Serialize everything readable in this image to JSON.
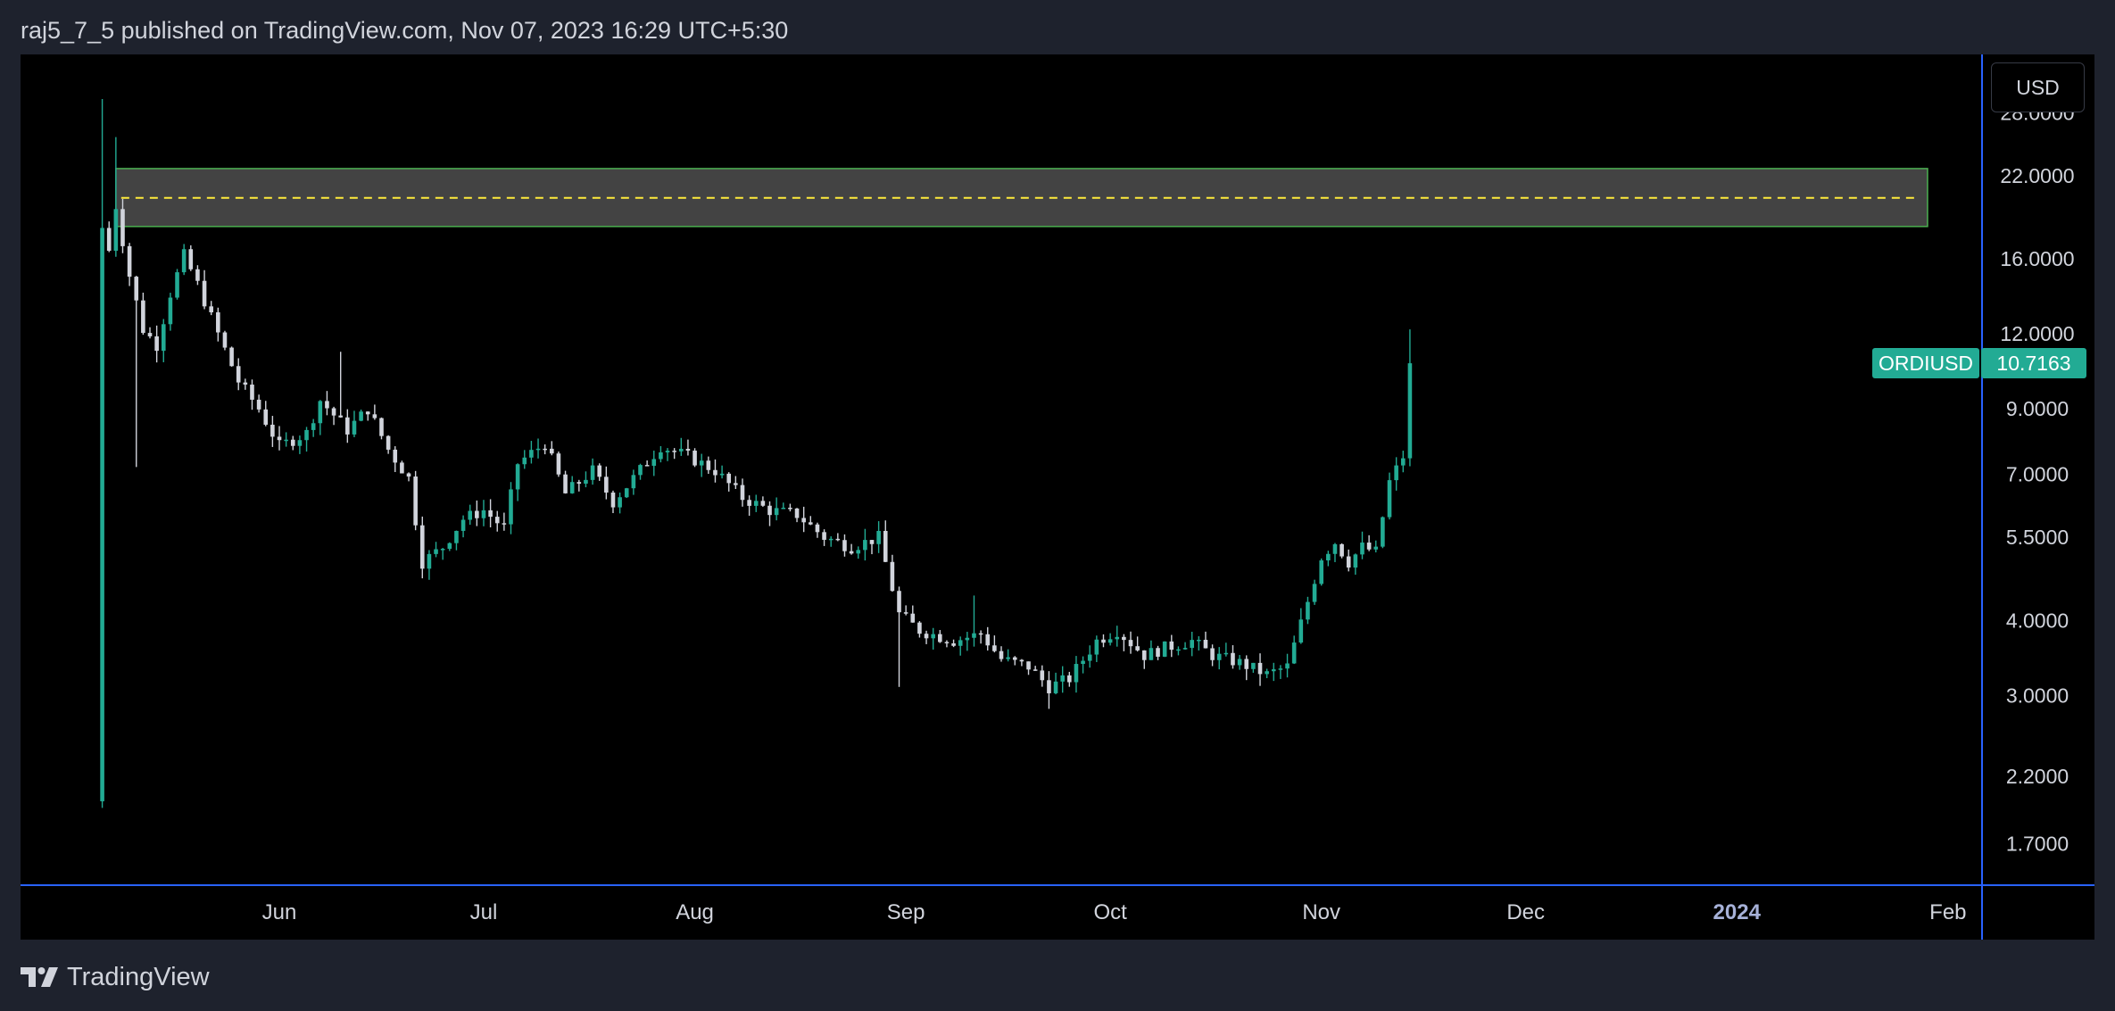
{
  "header": {
    "published": "raj5_7_5 published on TradingView.com, Nov 07, 2023 16:29 UTC+5:30"
  },
  "toolbar": {
    "currency": "USD"
  },
  "price_tag": {
    "symbol": "ORDIUSD",
    "price": "10.7163"
  },
  "footer": {
    "brand": "TradingView"
  },
  "colors": {
    "up": "#22ab94",
    "down": "#d1d4dc",
    "axis": "#2962ff",
    "zone_fill": "#434343",
    "zone_border": "#4caf50",
    "zone_midline": "#ffeb3b",
    "text": "#d1d4dc",
    "background": "#000000",
    "frame": "#1e222d"
  },
  "chart_data": {
    "type": "candlestick",
    "symbol": "ORDIUSD",
    "interval": "1D",
    "y_scale": "log",
    "ylim": [
      1.45,
      35
    ],
    "x_ticks": [
      {
        "date": "2023-06-01",
        "label": "Jun"
      },
      {
        "date": "2023-07-01",
        "label": "Jul"
      },
      {
        "date": "2023-08-01",
        "label": "Aug"
      },
      {
        "date": "2023-09-01",
        "label": "Sep"
      },
      {
        "date": "2023-10-01",
        "label": "Oct"
      },
      {
        "date": "2023-11-01",
        "label": "Nov"
      },
      {
        "date": "2023-12-01",
        "label": "Dec"
      },
      {
        "date": "2024-01-01",
        "label": "2024"
      },
      {
        "date": "2024-02-01",
        "label": "Feb"
      }
    ],
    "x_range": [
      "2023-04-24",
      "2024-02-06"
    ],
    "y_ticks": [
      {
        "value": 28,
        "label": "28.0000"
      },
      {
        "value": 22,
        "label": "22.0000"
      },
      {
        "value": 16,
        "label": "16.0000"
      },
      {
        "value": 12,
        "label": "12.0000"
      },
      {
        "value": 9,
        "label": "9.0000"
      },
      {
        "value": 7,
        "label": "7.0000"
      },
      {
        "value": 5.5,
        "label": "5.5000"
      },
      {
        "value": 4,
        "label": "4.0000"
      },
      {
        "value": 3,
        "label": "3.0000"
      },
      {
        "value": 2.2,
        "label": "2.2000"
      },
      {
        "value": 1.7,
        "label": "1.7000"
      }
    ],
    "last_price": 10.7163,
    "zone": {
      "x_start": "2023-05-08",
      "x_end": "2024-01-29",
      "top": 22.6,
      "bottom": 18.1,
      "mid": 20.2
    },
    "anchors": [
      [
        "2023-05-07",
        16.5
      ],
      [
        "2023-05-08",
        19.6
      ],
      [
        "2023-05-10",
        15.0
      ],
      [
        "2023-05-12",
        12.2
      ],
      [
        "2023-05-14",
        11.5
      ],
      [
        "2023-05-16",
        14.0
      ],
      [
        "2023-05-18",
        16.2
      ],
      [
        "2023-05-20",
        14.5
      ],
      [
        "2023-05-23",
        12.0
      ],
      [
        "2023-05-26",
        10.0
      ],
      [
        "2023-05-29",
        9.0
      ],
      [
        "2023-06-01",
        7.8
      ],
      [
        "2023-06-05",
        8.2
      ],
      [
        "2023-06-07",
        9.3
      ],
      [
        "2023-06-11",
        8.3
      ],
      [
        "2023-06-14",
        9.0
      ],
      [
        "2023-06-17",
        7.7
      ],
      [
        "2023-06-20",
        6.9
      ],
      [
        "2023-06-22",
        5.0
      ],
      [
        "2023-06-25",
        5.3
      ],
      [
        "2023-06-28",
        5.9
      ],
      [
        "2023-07-01",
        6.1
      ],
      [
        "2023-07-04",
        5.7
      ],
      [
        "2023-07-06",
        7.3
      ],
      [
        "2023-07-10",
        7.9
      ],
      [
        "2023-07-13",
        6.5
      ],
      [
        "2023-07-17",
        7.1
      ],
      [
        "2023-07-20",
        6.3
      ],
      [
        "2023-07-23",
        6.9
      ],
      [
        "2023-07-27",
        7.8
      ],
      [
        "2023-07-31",
        7.5
      ],
      [
        "2023-08-04",
        7.1
      ],
      [
        "2023-08-08",
        6.4
      ],
      [
        "2023-08-12",
        6.1
      ],
      [
        "2023-08-16",
        6.0
      ],
      [
        "2023-08-20",
        5.5
      ],
      [
        "2023-08-24",
        5.3
      ],
      [
        "2023-08-28",
        5.5
      ],
      [
        "2023-08-31",
        4.1
      ],
      [
        "2023-09-03",
        3.85
      ],
      [
        "2023-09-08",
        3.7
      ],
      [
        "2023-09-12",
        3.8
      ],
      [
        "2023-09-15",
        3.45
      ],
      [
        "2023-09-19",
        3.35
      ],
      [
        "2023-09-22",
        3.1
      ],
      [
        "2023-09-25",
        3.2
      ],
      [
        "2023-09-29",
        3.7
      ],
      [
        "2023-10-02",
        3.85
      ],
      [
        "2023-10-06",
        3.5
      ],
      [
        "2023-10-09",
        3.6
      ],
      [
        "2023-10-13",
        3.7
      ],
      [
        "2023-10-16",
        3.5
      ],
      [
        "2023-10-20",
        3.4
      ],
      [
        "2023-10-24",
        3.25
      ],
      [
        "2023-10-27",
        3.35
      ],
      [
        "2023-10-30",
        4.3
      ],
      [
        "2023-11-01",
        5.1
      ],
      [
        "2023-11-03",
        5.4
      ],
      [
        "2023-11-05",
        5.0
      ],
      [
        "2023-11-07",
        5.3
      ],
      [
        "2023-11-09",
        5.2
      ],
      [
        "2023-11-11",
        6.8
      ],
      [
        "2023-11-13",
        7.5
      ],
      [
        "2023-11-14",
        10.7163
      ]
    ]
  }
}
